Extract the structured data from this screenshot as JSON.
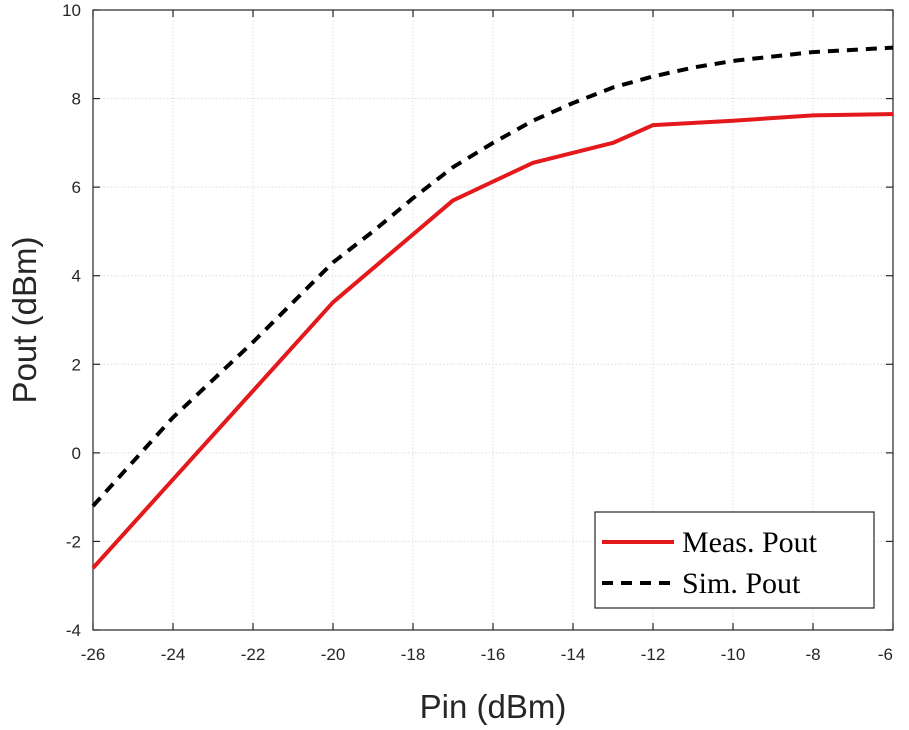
{
  "chart_data": {
    "type": "line",
    "xlabel": "Pin (dBm)",
    "ylabel": "Pout (dBm)",
    "xlim": [
      -26,
      -6
    ],
    "ylim": [
      -4,
      10
    ],
    "xticks": [
      -26,
      -24,
      -22,
      -20,
      -18,
      -16,
      -14,
      -12,
      -10,
      -8,
      -6
    ],
    "yticks": [
      -4,
      -2,
      0,
      2,
      4,
      6,
      8,
      10
    ],
    "grid": true,
    "legend_position": "bottom-right",
    "series": [
      {
        "name": "Meas. Pout",
        "color": "#e3191c",
        "style": "solid",
        "x": [
          -26,
          -24,
          -22,
          -20,
          -17,
          -15,
          -13,
          -12,
          -10,
          -8,
          -6
        ],
        "y": [
          -2.6,
          -0.6,
          1.4,
          3.4,
          5.7,
          6.55,
          7.0,
          7.4,
          7.5,
          7.62,
          7.65
        ]
      },
      {
        "name": "Sim. Pout",
        "color": "#000000",
        "style": "dashed",
        "x": [
          -26,
          -25,
          -24,
          -23,
          -22,
          -21,
          -20,
          -19,
          -18,
          -17,
          -16,
          -15,
          -14,
          -13,
          -12,
          -11,
          -10,
          -9,
          -8,
          -7,
          -6
        ],
        "y": [
          -1.2,
          -0.2,
          0.8,
          1.65,
          2.5,
          3.4,
          4.3,
          5.0,
          5.75,
          6.45,
          7.0,
          7.5,
          7.9,
          8.25,
          8.5,
          8.7,
          8.85,
          8.95,
          9.05,
          9.1,
          9.15
        ]
      }
    ]
  }
}
